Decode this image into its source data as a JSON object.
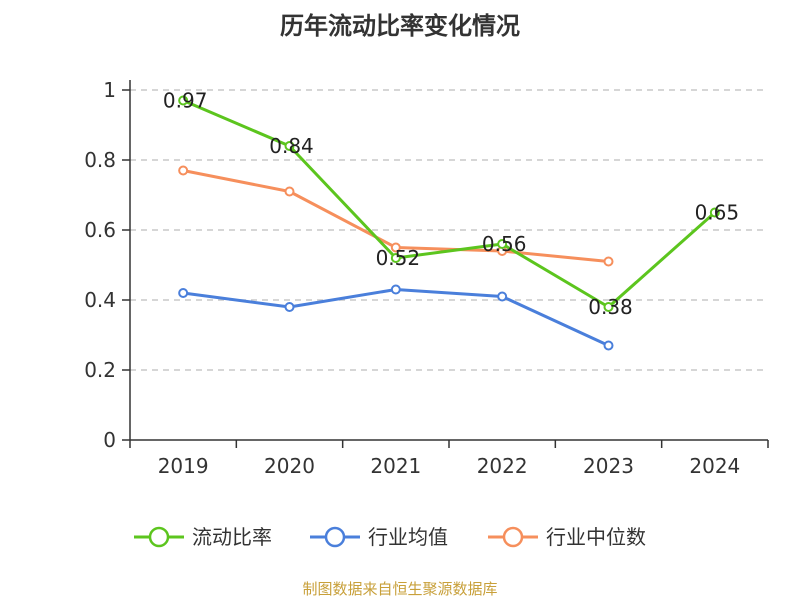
{
  "title": "历年流动比率变化情况",
  "source_note": "制图数据来自恒生聚源数据库",
  "chart_data": {
    "type": "line",
    "title": "历年流动比率变化情况",
    "categories": [
      "2019",
      "2020",
      "2021",
      "2022",
      "2023",
      "2024"
    ],
    "ylim": [
      0,
      1
    ],
    "yticks": [
      "0",
      "0.2",
      "0.4",
      "0.6",
      "0.8",
      "1"
    ],
    "grid": true,
    "legend_position": "bottom",
    "series": [
      {
        "name": "流动比率",
        "color": "#5cc51e",
        "values": [
          0.97,
          0.84,
          0.52,
          0.56,
          0.38,
          0.65
        ],
        "labels": [
          "0.97",
          "0.84",
          "0.52",
          "0.56",
          "0.38",
          "0.65"
        ],
        "show_labels": true
      },
      {
        "name": "行业均值",
        "color": "#4a7fdb",
        "values": [
          0.42,
          0.38,
          0.43,
          0.41,
          0.27,
          null
        ],
        "show_labels": false
      },
      {
        "name": "行业中位数",
        "color": "#f68f5c",
        "values": [
          0.77,
          0.71,
          0.55,
          0.54,
          0.51,
          null
        ],
        "show_labels": false
      }
    ]
  }
}
